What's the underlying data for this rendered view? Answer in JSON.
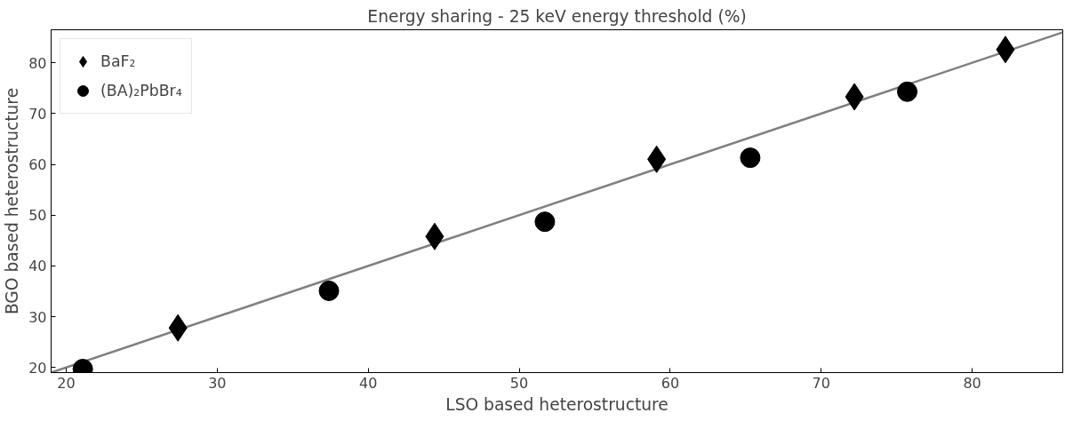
{
  "chart_data": {
    "type": "scatter",
    "title": "Energy sharing - 25 keV energy threshold (%)",
    "xlabel": "LSO based heterostructure",
    "ylabel": "BGO based heterostructure",
    "xlim": [
      19,
      86
    ],
    "ylim": [
      19,
      86.5
    ],
    "xticks": [
      20,
      30,
      40,
      50,
      60,
      70,
      80
    ],
    "yticks": [
      20,
      30,
      40,
      50,
      60,
      70,
      80
    ],
    "grid": false,
    "legend": "top left",
    "series": [
      {
        "type": "line",
        "color": "#808080",
        "x": [
          19,
          86
        ],
        "values": [
          19,
          86
        ],
        "line_style": "solid"
      },
      {
        "name": "BaF₂",
        "color": "#000000",
        "marker": "diamond",
        "x": [
          27.4,
          44.4,
          59.1,
          72.2,
          82.2
        ],
        "values": [
          27.8,
          45.8,
          61.0,
          73.3,
          82.6
        ]
      },
      {
        "name": "(BA)₂PbBr₄",
        "color": "#000000",
        "marker": "circle",
        "x": [
          21.1,
          37.4,
          51.7,
          65.3,
          75.7
        ],
        "values": [
          19.7,
          35.1,
          48.7,
          61.3,
          74.3
        ]
      }
    ]
  }
}
